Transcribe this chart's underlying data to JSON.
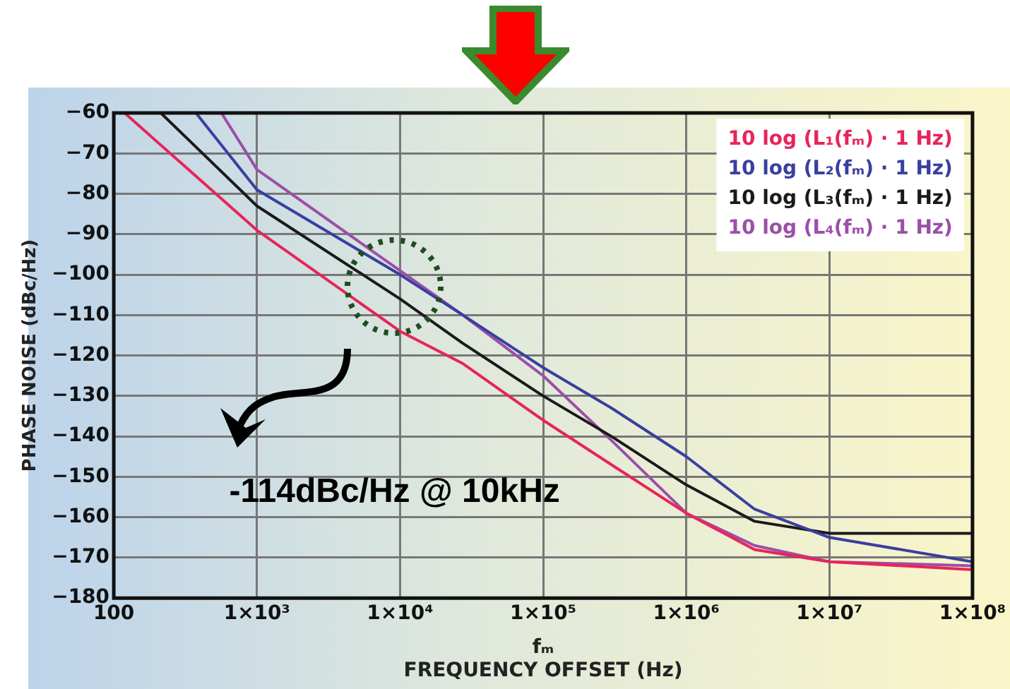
{
  "chart_data": {
    "type": "line",
    "ylabel": "PHASE NOISE (dBc/Hz)",
    "xlabel": "fₘ\nFREQUENCY OFFSET (Hz)",
    "log": "x",
    "grid": true,
    "legend": "top right",
    "marker": "none",
    "line_style": "solid",
    "xlim": [
      100,
      100000000
    ],
    "xticks": [
      100,
      {
        "value": 1000,
        "label": "1×10³"
      },
      {
        "value": 10000,
        "label": "1×10⁴"
      },
      {
        "value": 100000,
        "label": "1×10⁵"
      },
      {
        "value": 1000000,
        "label": "1×10⁶"
      },
      {
        "value": 10000000,
        "label": "1×10⁷"
      },
      {
        "value": 100000000,
        "label": "1×10⁸"
      }
    ],
    "ylim": [
      -180,
      -60
    ],
    "yticks": [
      -180,
      -170,
      -160,
      -150,
      -140,
      -130,
      -120,
      -110,
      -100,
      -90,
      -80,
      -70,
      -60
    ],
    "series": [
      {
        "name": "10 log (L₁(fₘ) · 1 Hz)",
        "color": "#e8245a",
        "x": [
          119,
          1000,
          10000,
          27500,
          100000,
          300000,
          1000000,
          3000000,
          10000000,
          100000000
        ],
        "values": [
          -60,
          -89,
          -114,
          -122,
          -136,
          -147,
          -159,
          -168,
          -171,
          -173
        ]
      },
      {
        "name": "10 log (L₂(fₘ) · 1 Hz)",
        "color": "#3a3fa0",
        "x": [
          375,
          1000,
          10000,
          27500,
          100000,
          300000,
          1000000,
          3000000,
          10000000,
          100000000
        ],
        "values": [
          -60,
          -79,
          -100,
          -110,
          -123,
          -133,
          -145,
          -158,
          -165,
          -171
        ]
      },
      {
        "name": "10 log (L₃(fₘ) · 1 Hz)",
        "color": "#1a1a1a",
        "x": [
          213,
          1000,
          10000,
          27500,
          100000,
          300000,
          1000000,
          3000000,
          10000000,
          100000000
        ],
        "values": [
          -60,
          -83,
          -106,
          -117,
          -130,
          -140,
          -152,
          -161,
          -164,
          -164
        ]
      },
      {
        "name": "10 log (L₄(fₘ) · 1 Hz)",
        "color": "#9b4fa8",
        "x": [
          565,
          1000,
          10000,
          27500,
          100000,
          300000,
          1000000,
          3000000,
          10000000,
          100000000
        ],
        "values": [
          -60,
          -74,
          -99,
          -110,
          -125,
          -141,
          -159,
          -167,
          -171,
          -172
        ]
      }
    ],
    "annotations": [
      "-114dBc/Hz @ 10kHz"
    ]
  }
}
